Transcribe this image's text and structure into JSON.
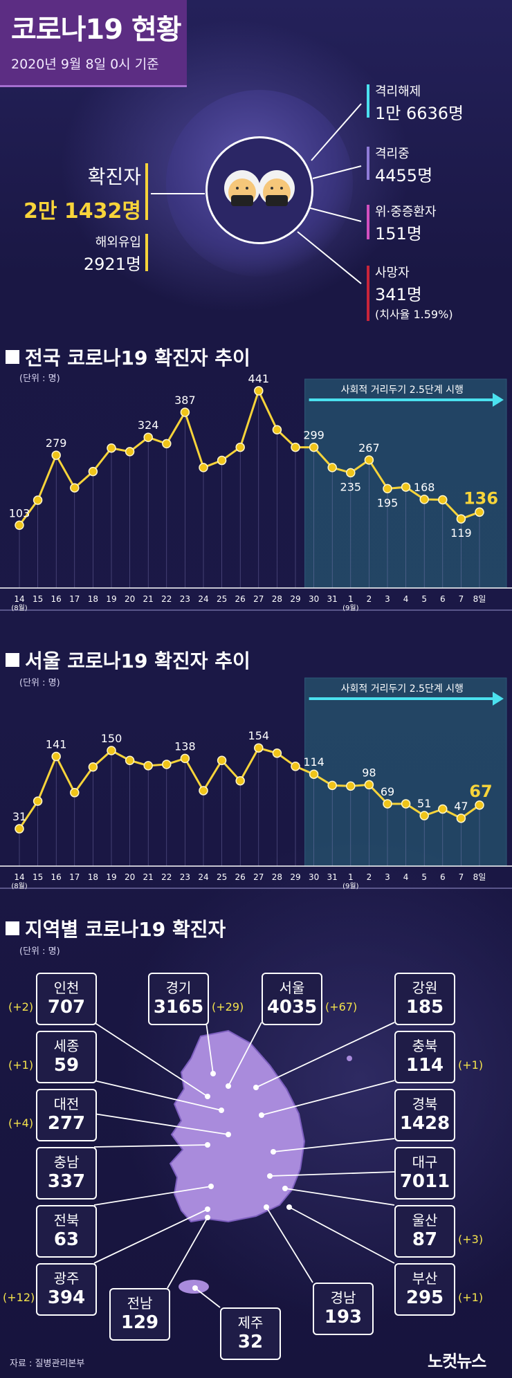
{
  "header": {
    "title": "코로나19 현황",
    "date": "2020년 9월 8일 0시 기준"
  },
  "summary": {
    "confirmed_label": "확진자",
    "confirmed_value": "2만 1432명",
    "imported_label": "해외유입",
    "imported_value": "2921명",
    "released_label": "격리해제",
    "released_value": "1만 6636명",
    "isolated_label": "격리중",
    "isolated_value": "4455명",
    "critical_label": "위·중증환자",
    "critical_value": "151명",
    "deaths_label": "사망자",
    "deaths_value": "341명",
    "fatality_note": "(치사율 1.59%)"
  },
  "colors": {
    "line": "#f7d43a",
    "point": "#f0c419",
    "highlight_fill": "#2a6a7e",
    "arrow": "#4be1ef",
    "released": "#4be1ef",
    "isolated": "#8f7bd8",
    "critical": "#d24fbf",
    "deaths": "#c8243a",
    "confirmed": "#f7d43a"
  },
  "icons": [
    "masked-person-icon",
    "masked-person-icon"
  ],
  "chart_data": [
    {
      "type": "line",
      "title": "전국 코로나19 확진자 추이",
      "unit": "(단위 : 명)",
      "annotation": "사회적 거리두기 2.5단계 시행",
      "categories": [
        "14",
        "15",
        "16",
        "17",
        "18",
        "19",
        "20",
        "21",
        "22",
        "23",
        "24",
        "25",
        "26",
        "27",
        "28",
        "29",
        "30",
        "31",
        "1",
        "2",
        "3",
        "4",
        "5",
        "6",
        "7",
        "8일"
      ],
      "month_labels": [
        {
          "index": 0,
          "text": "(8월)"
        },
        {
          "index": 18,
          "text": "(9월)"
        }
      ],
      "values": [
        103,
        166,
        279,
        197,
        238,
        297,
        288,
        324,
        308,
        387,
        248,
        266,
        299,
        441,
        343,
        299,
        299,
        248,
        235,
        267,
        195,
        199,
        168,
        167,
        119,
        136
      ],
      "labeled": [
        0,
        2,
        7,
        9,
        13,
        16,
        18,
        19,
        20,
        22,
        24,
        25
      ],
      "highlight_start_index": 16,
      "ylim": [
        60,
        460
      ]
    },
    {
      "type": "line",
      "title": "서울 코로나19 확진자 추이",
      "unit": "(단위 : 명)",
      "annotation": "사회적 거리두기 2.5단계 시행",
      "categories": [
        "14",
        "15",
        "16",
        "17",
        "18",
        "19",
        "20",
        "21",
        "22",
        "23",
        "24",
        "25",
        "26",
        "27",
        "28",
        "29",
        "30",
        "31",
        "1",
        "2",
        "3",
        "4",
        "5",
        "6",
        "7",
        "8일"
      ],
      "month_labels": [
        {
          "index": 0,
          "text": "(8월)"
        },
        {
          "index": 18,
          "text": "(9월)"
        }
      ],
      "values": [
        31,
        73,
        141,
        86,
        125,
        150,
        135,
        127,
        129,
        138,
        89,
        135,
        104,
        154,
        146,
        126,
        114,
        97,
        96,
        98,
        69,
        69,
        51,
        61,
        47,
        67
      ],
      "labeled": [
        0,
        2,
        5,
        9,
        13,
        16,
        19,
        20,
        22,
        24,
        25
      ],
      "highlight_start_index": 16,
      "ylim": [
        10,
        170
      ]
    }
  ],
  "regions": {
    "title": "지역별 코로나19 확진자",
    "unit": "(단위 : 명)",
    "items": [
      {
        "name": "인천",
        "value": "707",
        "delta": "(+2)"
      },
      {
        "name": "경기",
        "value": "3165",
        "delta": "(+29)"
      },
      {
        "name": "서울",
        "value": "4035",
        "delta": "(+67)"
      },
      {
        "name": "강원",
        "value": "185",
        "delta": ""
      },
      {
        "name": "세종",
        "value": "59",
        "delta": "(+1)"
      },
      {
        "name": "충북",
        "value": "114",
        "delta": "(+1)"
      },
      {
        "name": "대전",
        "value": "277",
        "delta": "(+4)"
      },
      {
        "name": "경북",
        "value": "1428",
        "delta": ""
      },
      {
        "name": "충남",
        "value": "337",
        "delta": ""
      },
      {
        "name": "대구",
        "value": "7011",
        "delta": ""
      },
      {
        "name": "전북",
        "value": "63",
        "delta": ""
      },
      {
        "name": "울산",
        "value": "87",
        "delta": "(+3)"
      },
      {
        "name": "광주",
        "value": "394",
        "delta": "(+12)"
      },
      {
        "name": "부산",
        "value": "295",
        "delta": "(+1)"
      },
      {
        "name": "전남",
        "value": "129",
        "delta": ""
      },
      {
        "name": "경남",
        "value": "193",
        "delta": ""
      },
      {
        "name": "제주",
        "value": "32",
        "delta": ""
      }
    ]
  },
  "footer": {
    "source": "자료 : 질병관리본부",
    "logo": "노컷뉴스"
  }
}
